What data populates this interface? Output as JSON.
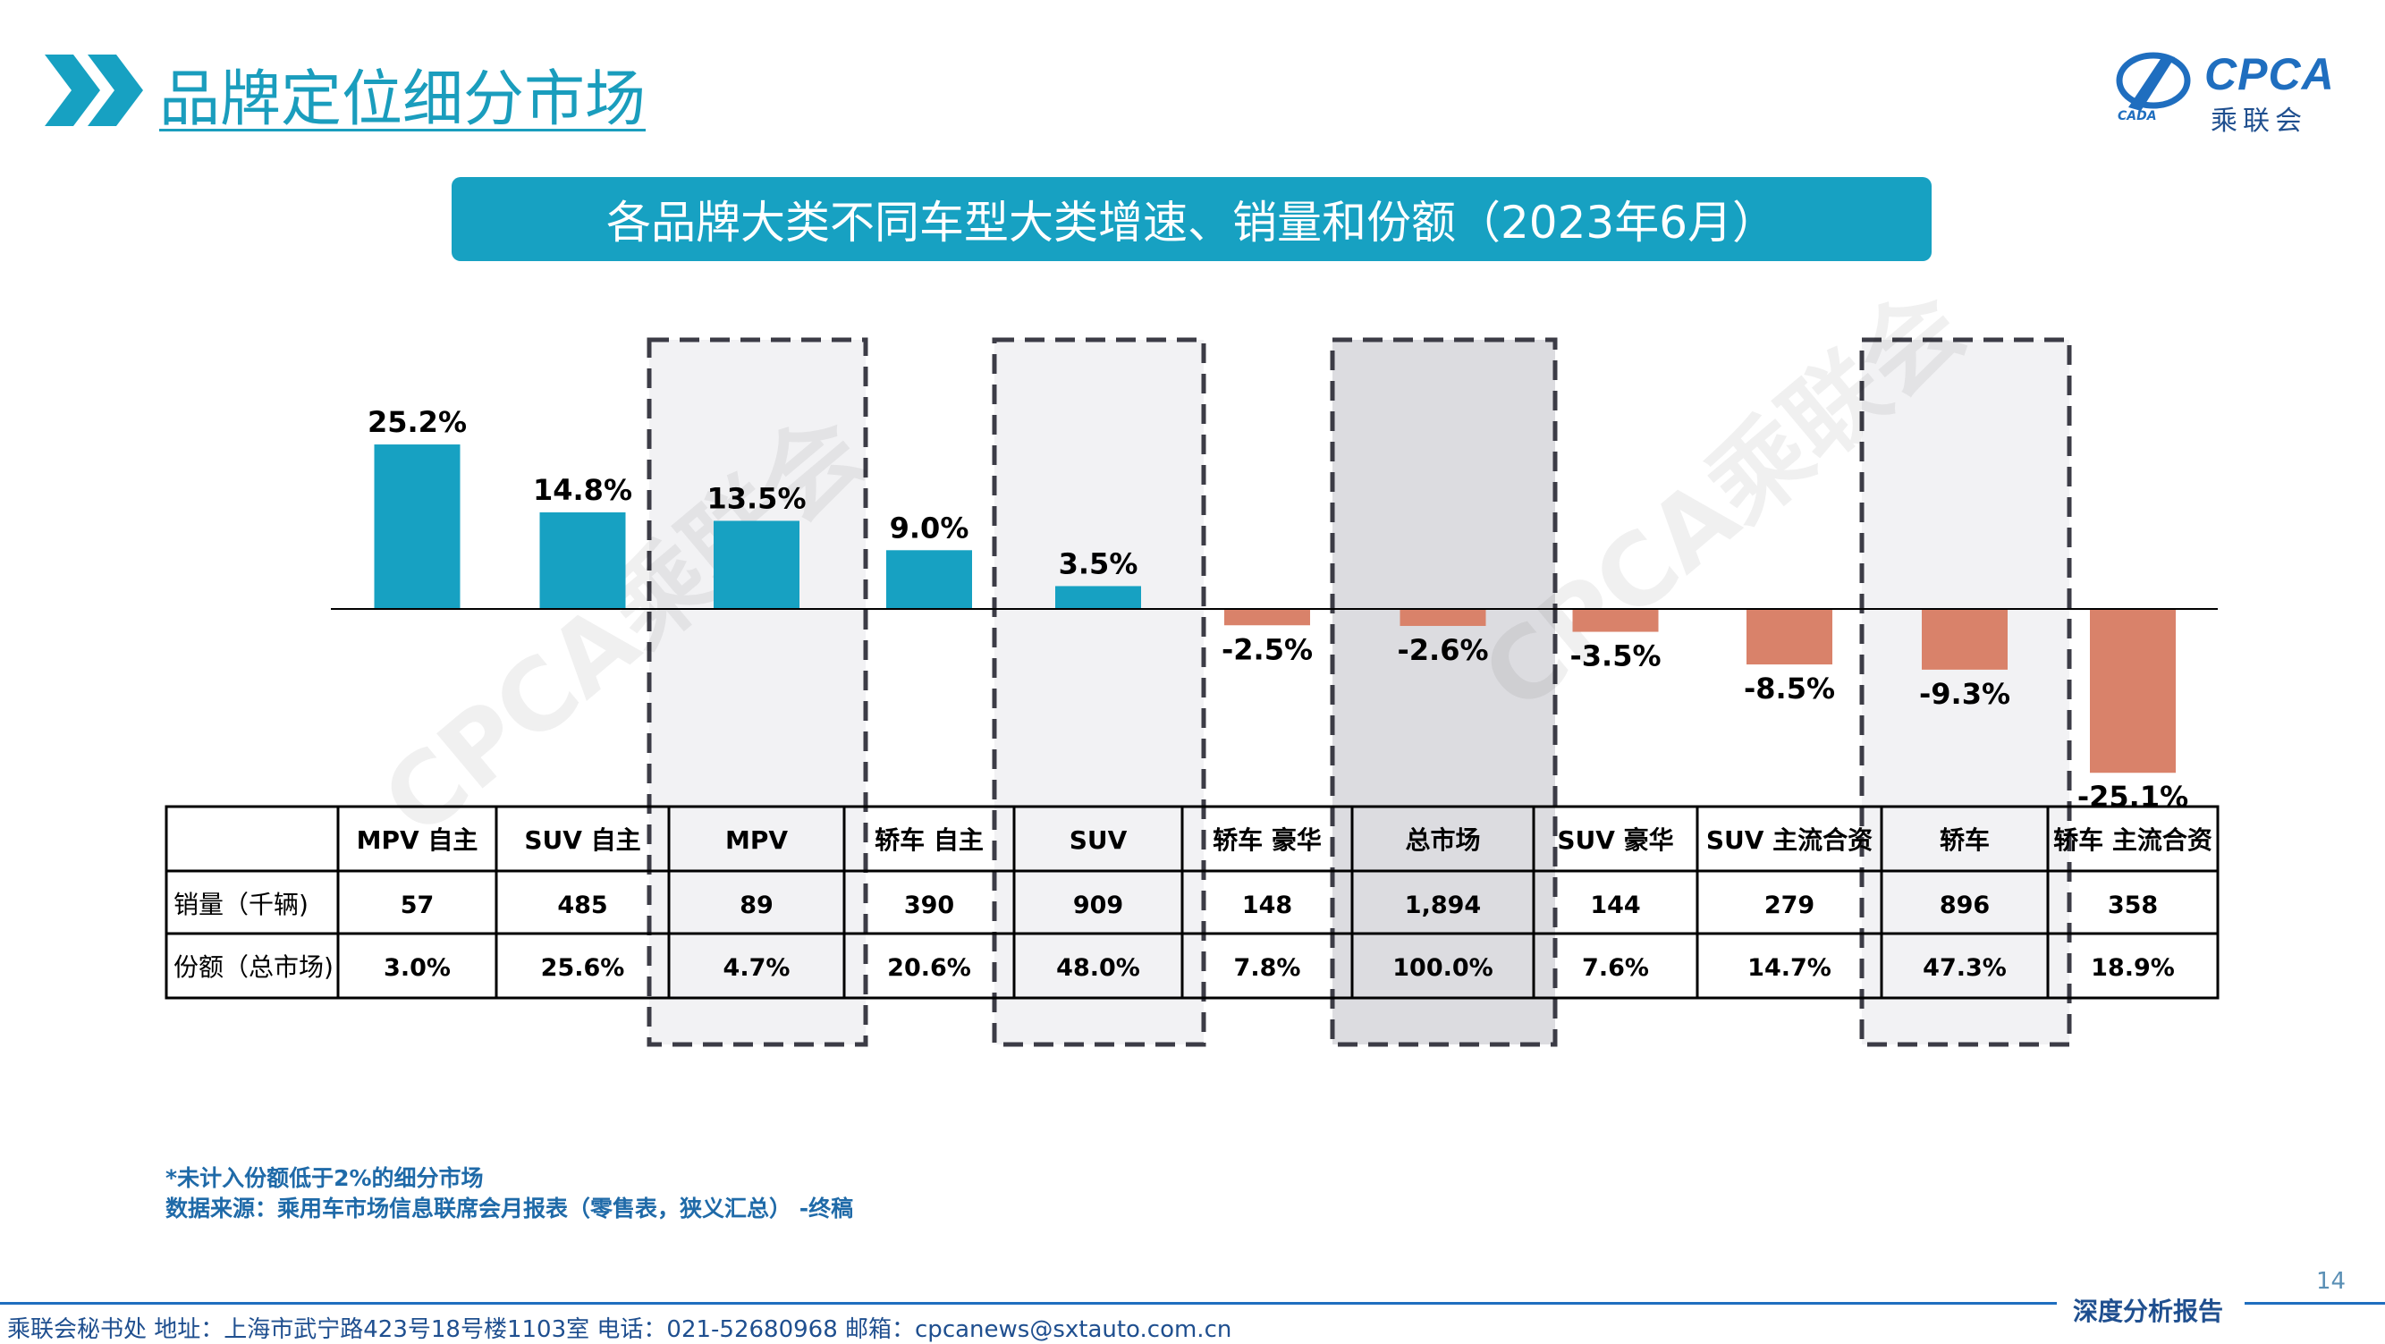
{
  "header": {
    "title": "品牌定位细分市场",
    "logo_text": "CPCA",
    "logo_subtext": "乘联会",
    "logo_small": "CADA"
  },
  "banner": {
    "text": "各品牌大类不同车型大类增速、销量和份额（2023年6月）"
  },
  "watermarks": [
    "CPCA乘联会",
    "CPCA乘联会"
  ],
  "colors": {
    "accent": "#17a1c2",
    "positive_bar": "#17a1c2",
    "negative_bar": "#d9826a",
    "highlight_box": "#f2f2f4",
    "highlight_box_dark": "#dcdce0",
    "box_border": "#3c3c46"
  },
  "chart_data": {
    "type": "bar",
    "categories": [
      "MPV 自主",
      "SUV 自主",
      "MPV",
      "轿车 自主",
      "SUV",
      "轿车 豪华",
      "总市场",
      "SUV 豪华",
      "SUV 主流合资",
      "轿车",
      "轿车 主流合资"
    ],
    "values": [
      25.2,
      14.8,
      13.5,
      9.0,
      3.5,
      -2.5,
      -2.6,
      -3.5,
      -8.5,
      -9.3,
      -25.1
    ],
    "value_labels": [
      "25.2%",
      "14.8%",
      "13.5%",
      "9.0%",
      "3.5%",
      "-2.5%",
      "-2.6%",
      "-3.5%",
      "-8.5%",
      "-9.3%",
      "-25.1%"
    ],
    "unit": "%",
    "highlighted": [
      "MPV",
      "SUV",
      "总市场",
      "轿车"
    ],
    "table": {
      "row_labels": [
        "销量（千辆)",
        "份额（总市场)"
      ],
      "rows": [
        [
          "57",
          "485",
          "89",
          "390",
          "909",
          "148",
          "1,894",
          "144",
          "279",
          "896",
          "358"
        ],
        [
          "3.0%",
          "25.6%",
          "4.7%",
          "20.6%",
          "48.0%",
          "7.8%",
          "100.0%",
          "7.6%",
          "14.7%",
          "47.3%",
          "18.9%"
        ]
      ]
    }
  },
  "notes": {
    "note1": "*未计入份额低于2%的细分市场",
    "note2": "数据来源：乘用车市场信息联席会月报表（零售表，狭义汇总） -终稿"
  },
  "footer": {
    "page_number": "14",
    "address": "乘联会秘书处   地址：上海市武宁路423号18号楼1103室   电话：021-52680968   邮箱：cpcanews@sxtauto.com.cn",
    "report_tag": "深度分析报告"
  }
}
